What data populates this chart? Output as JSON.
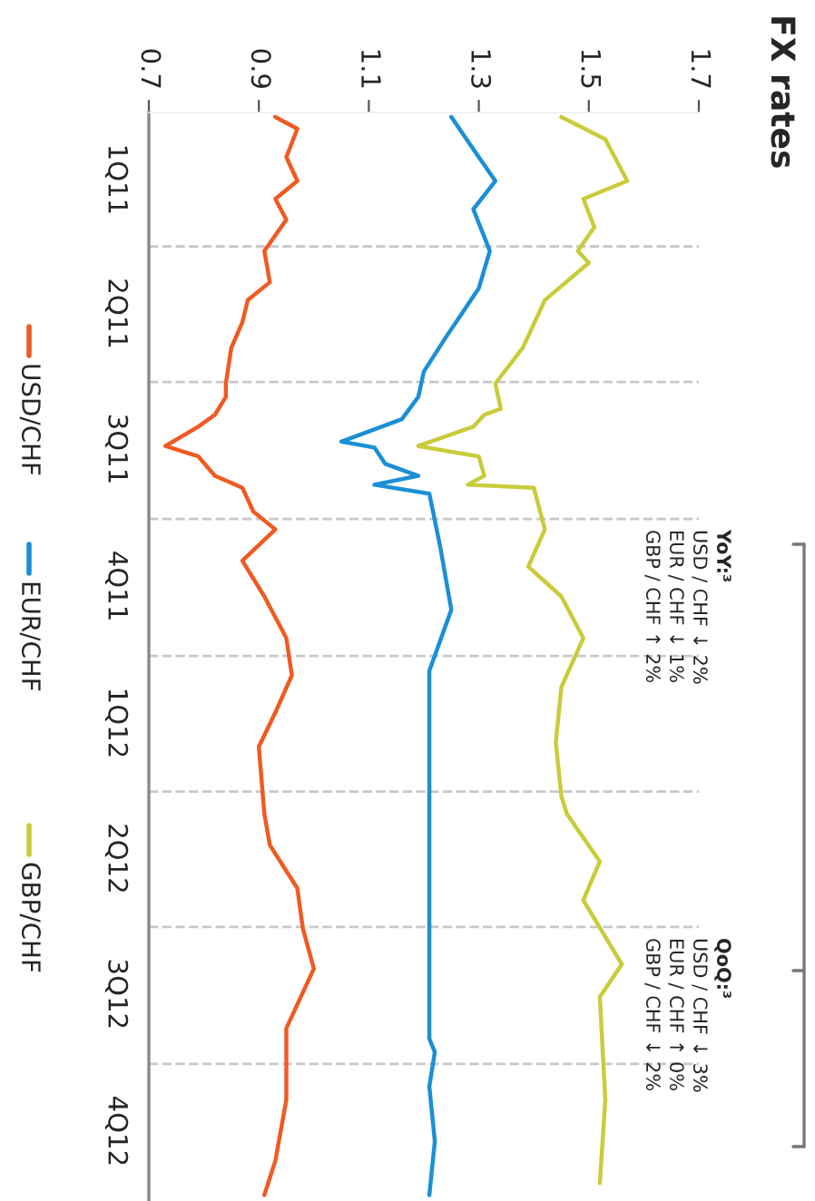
{
  "chart_data": {
    "type": "line",
    "title": "FX rates",
    "orientation": "horizontal",
    "ylim": [
      "2013-01-01",
      "2011-01-01"
    ],
    "yticks": [
      {
        "value": "2011-02-15",
        "label": "1Q11"
      },
      {
        "value": "2011-05-16",
        "label": "2Q11"
      },
      {
        "value": "2011-08-15",
        "label": "3Q11"
      },
      {
        "value": "2011-11-15",
        "label": "4Q11"
      },
      {
        "value": "2012-02-15",
        "label": "1Q12"
      },
      {
        "value": "2012-05-16",
        "label": "2Q12"
      },
      {
        "value": "2012-08-15",
        "label": "3Q12"
      },
      {
        "value": "2012-11-15",
        "label": "4Q12"
      }
    ],
    "xlim": [
      0.7,
      1.7
    ],
    "xticks": [
      0.7,
      0.9,
      1.1,
      1.3,
      1.5,
      1.7
    ],
    "series": [
      {
        "name": "USD/CHF",
        "color": "#f05a22",
        "x": [
          "2011-01-04",
          "2011-01-12",
          "2011-01-31",
          "2011-02-16",
          "2011-02-28",
          "2011-03-14",
          "2011-04-04",
          "2011-04-25",
          "2011-05-07",
          "2011-05-22",
          "2011-06-08",
          "2011-07-02",
          "2011-07-11",
          "2011-07-23",
          "2011-07-31",
          "2011-08-13",
          "2011-08-20",
          "2011-09-02",
          "2011-09-10",
          "2011-09-26",
          "2011-10-08",
          "2011-10-29",
          "2011-11-22",
          "2011-12-20",
          "2012-01-14",
          "2012-02-08",
          "2012-03-02",
          "2012-04-16",
          "2012-05-07",
          "2012-06-05",
          "2012-07-02",
          "2012-07-29",
          "2012-09-07",
          "2012-10-25",
          "2012-12-05",
          "2012-12-28"
        ],
        "values": [
          0.93,
          0.97,
          0.95,
          0.97,
          0.93,
          0.95,
          0.91,
          0.92,
          0.88,
          0.87,
          0.85,
          0.84,
          0.84,
          0.82,
          0.79,
          0.73,
          0.79,
          0.82,
          0.87,
          0.89,
          0.93,
          0.87,
          0.91,
          0.95,
          0.96,
          0.93,
          0.9,
          0.91,
          0.92,
          0.97,
          0.98,
          1.0,
          0.95,
          0.95,
          0.93,
          0.91
        ]
      },
      {
        "name": "EUR/CHF",
        "color": "#1a8fd6",
        "x": [
          "2011-01-04",
          "2011-01-31",
          "2011-02-16",
          "2011-03-07",
          "2011-04-04",
          "2011-04-29",
          "2011-06-01",
          "2011-06-24",
          "2011-07-11",
          "2011-07-26",
          "2011-08-10",
          "2011-08-14",
          "2011-08-25",
          "2011-09-02",
          "2011-09-08",
          "2011-09-14",
          "2011-10-20",
          "2011-12-01",
          "2012-01-11",
          "2012-03-10",
          "2012-04-16",
          "2012-09-14",
          "2012-09-23",
          "2012-10-16",
          "2012-11-22",
          "2012-12-28"
        ],
        "values": [
          1.25,
          1.3,
          1.33,
          1.29,
          1.32,
          1.3,
          1.24,
          1.2,
          1.19,
          1.16,
          1.05,
          1.11,
          1.13,
          1.19,
          1.11,
          1.21,
          1.23,
          1.25,
          1.21,
          1.21,
          1.21,
          1.21,
          1.22,
          1.21,
          1.22,
          1.21
        ]
      },
      {
        "name": "GBP/CHF",
        "color": "#c9cc3a",
        "x": [
          "2011-01-04",
          "2011-01-19",
          "2011-02-16",
          "2011-02-28",
          "2011-03-19",
          "2011-04-04",
          "2011-04-12",
          "2011-05-07",
          "2011-06-08",
          "2011-07-02",
          "2011-07-19",
          "2011-07-23",
          "2011-07-31",
          "2011-08-13",
          "2011-08-20",
          "2011-09-02",
          "2011-09-08",
          "2011-09-10",
          "2011-10-08",
          "2011-11-02",
          "2011-11-22",
          "2011-12-20",
          "2012-01-22",
          "2012-02-28",
          "2012-04-04",
          "2012-04-16",
          "2012-05-18",
          "2012-06-13",
          "2012-07-26",
          "2012-08-17",
          "2012-10-25",
          "2012-12-20"
        ],
        "values": [
          1.45,
          1.53,
          1.57,
          1.49,
          1.51,
          1.48,
          1.5,
          1.42,
          1.38,
          1.33,
          1.34,
          1.31,
          1.29,
          1.19,
          1.3,
          1.31,
          1.28,
          1.4,
          1.42,
          1.39,
          1.45,
          1.49,
          1.45,
          1.44,
          1.45,
          1.46,
          1.52,
          1.49,
          1.56,
          1.52,
          1.53,
          1.52
        ]
      }
    ],
    "ref_lines": [
      {
        "axis": "y",
        "value": "2011-04-01",
        "color": "#c8c8c8",
        "line_style": "dashed"
      },
      {
        "axis": "y",
        "value": "2011-07-01",
        "color": "#c8c8c8",
        "line_style": "dashed"
      },
      {
        "axis": "y",
        "value": "2011-10-01",
        "color": "#c8c8c8",
        "line_style": "dashed"
      },
      {
        "axis": "y",
        "value": "2012-01-01",
        "color": "#c8c8c8",
        "line_style": "dashed"
      },
      {
        "axis": "y",
        "value": "2012-04-01",
        "color": "#c8c8c8",
        "line_style": "dashed"
      },
      {
        "axis": "y",
        "value": "2012-07-01",
        "color": "#c8c8c8",
        "line_style": "dashed"
      },
      {
        "axis": "y",
        "value": "2012-10-01",
        "color": "#c8c8c8",
        "line_style": "dashed"
      }
    ],
    "annotations": [
      "YoY:³",
      "USD / CHF ↓ 2%",
      "EUR / CHF ↓ 1%",
      "GBP / CHF ↑ 2%",
      "QoQ:³",
      "USD / CHF ↓ 3%",
      "EUR / CHF ↑ 0%",
      "GBP / CHF ↓ 2%"
    ],
    "legend": "left",
    "grid": false,
    "marker": "none",
    "line_style": "solid"
  }
}
